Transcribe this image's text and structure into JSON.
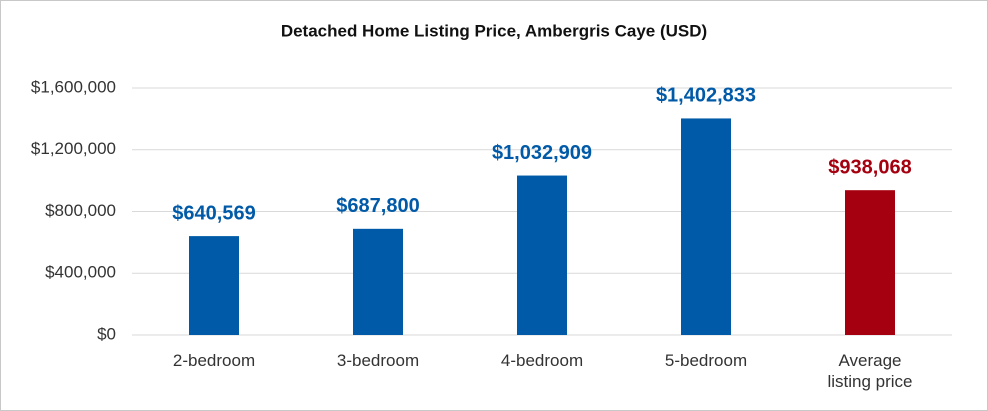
{
  "chart_data": {
    "type": "bar",
    "title": "Detached Home Listing Price, Ambergris Caye (USD)",
    "categories": [
      "2-bedroom",
      "3-bedroom",
      "4-bedroom",
      "5-bedroom",
      "Average listing price"
    ],
    "values": [
      640569,
      687800,
      1032909,
      1402833,
      938068
    ],
    "value_labels": [
      "$640,569",
      "$687,800",
      "$1,032,909",
      "$1,402,833",
      "$938,068"
    ],
    "colors": [
      "#005aa7",
      "#005aa7",
      "#005aa7",
      "#005aa7",
      "#a5000f"
    ],
    "ylim": [
      0,
      1600000
    ],
    "yticks": [
      {
        "value": 0,
        "label": "$0"
      },
      {
        "value": 400000,
        "label": "$400,000"
      },
      {
        "value": 800000,
        "label": "$800,000"
      },
      {
        "value": 1200000,
        "label": "$1,200,000"
      },
      {
        "value": 1600000,
        "label": "$1,600,000"
      }
    ],
    "grid": true
  }
}
